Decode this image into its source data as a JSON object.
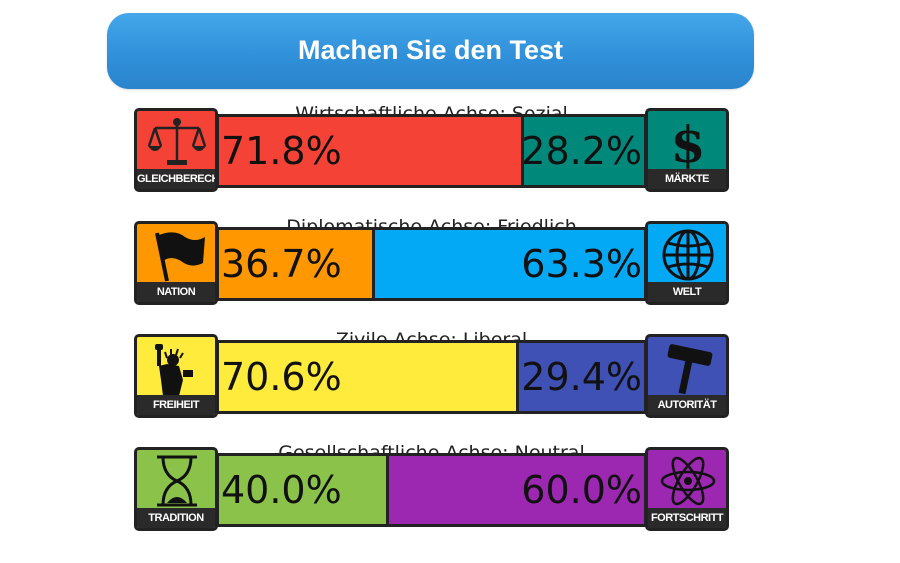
{
  "header": {
    "test_button_label": "Machen Sie den Test"
  },
  "axes": [
    {
      "title": "Wirtschaftliche Achse: Sozial",
      "left": {
        "label": "GLEICHBERECHTIGUNG",
        "percent_text": "71.8%",
        "value": 71.8,
        "color": "#f44336",
        "icon": "scales-icon"
      },
      "right": {
        "label": "MÄRKTE",
        "percent_text": "28.2%",
        "value": 28.2,
        "color": "#00897b",
        "icon": "dollar-icon"
      }
    },
    {
      "title": "Diplomatische Achse: Friedlich",
      "left": {
        "label": "NATION",
        "percent_text": "36.7%",
        "value": 36.7,
        "color": "#ff9800",
        "icon": "flag-icon"
      },
      "right": {
        "label": "WELT",
        "percent_text": "63.3%",
        "value": 63.3,
        "color": "#03a9f4",
        "icon": "globe-icon"
      }
    },
    {
      "title": "Zivile Achse: Liberal",
      "left": {
        "label": "FREIHEIT",
        "percent_text": "70.6%",
        "value": 70.6,
        "color": "#ffeb3b",
        "icon": "statue-of-liberty-icon"
      },
      "right": {
        "label": "AUTORITÄT",
        "percent_text": "29.4%",
        "value": 29.4,
        "color": "#3f51b5",
        "icon": "gavel-icon"
      }
    },
    {
      "title": "Gesellschaftliche Achse: Neutral",
      "left": {
        "label": "TRADITION",
        "percent_text": "40.0%",
        "value": 40.0,
        "color": "#8bc34a",
        "icon": "hourglass-icon"
      },
      "right": {
        "label": "FORTSCHRITT",
        "percent_text": "60.0%",
        "value": 60.0,
        "color": "#9c27b0",
        "icon": "atom-icon"
      }
    }
  ]
}
